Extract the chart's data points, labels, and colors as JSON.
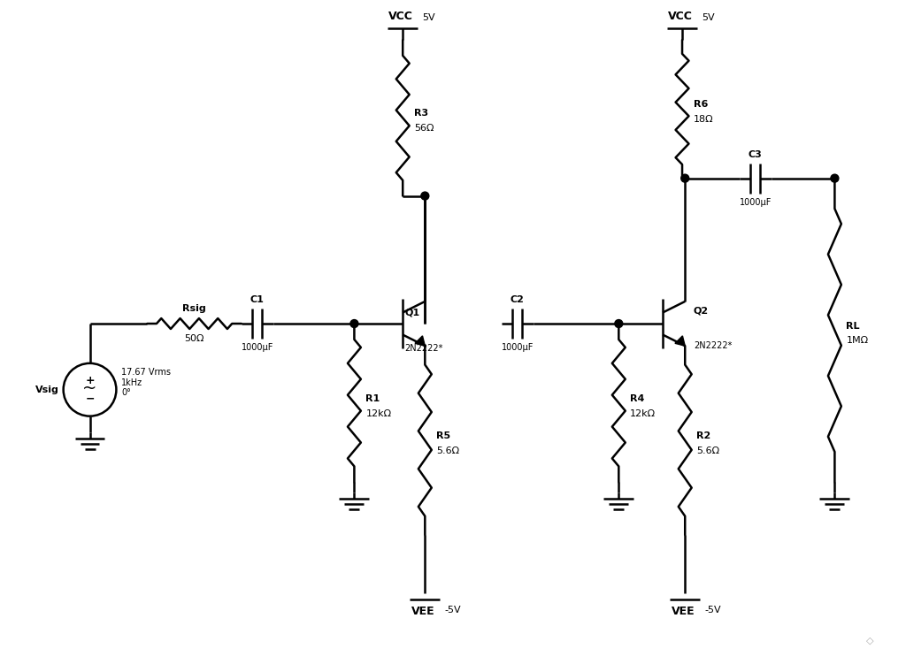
{
  "bg_color": "#ffffff",
  "line_color": "#000000",
  "lw": 1.8,
  "fs_bold": 9,
  "fs_val": 8,
  "fs_small": 7,
  "components": {
    "Rsig": "Rsig",
    "Rsig_val": "50Ω",
    "C1": "C1",
    "C1_val": "1000μF",
    "R1": "R1",
    "R1_val": "12kΩ",
    "R3": "R3",
    "R3_val": "56Ω",
    "R5": "R5",
    "R5_val": "5.6Ω",
    "C2": "C2",
    "C2_val": "1000μF",
    "R4": "R4",
    "R4_val": "12kΩ",
    "R6": "R6",
    "R6_val": "18Ω",
    "R2": "R2",
    "R2_val": "5.6Ω",
    "C3": "C3",
    "C3_val": "1000μF",
    "RL": "RL",
    "RL_val": "1MΩ",
    "Q1": "Q1",
    "Q1_val": "2N2222*",
    "Q2": "Q2",
    "Q2_val": "2N2222*",
    "Vsig_val": "17.67 Vrms\n1kHz\n0°",
    "VCC": "VCC",
    "VCC_val": "5V",
    "VEE": "VEE",
    "VEE_val": "-5V"
  }
}
